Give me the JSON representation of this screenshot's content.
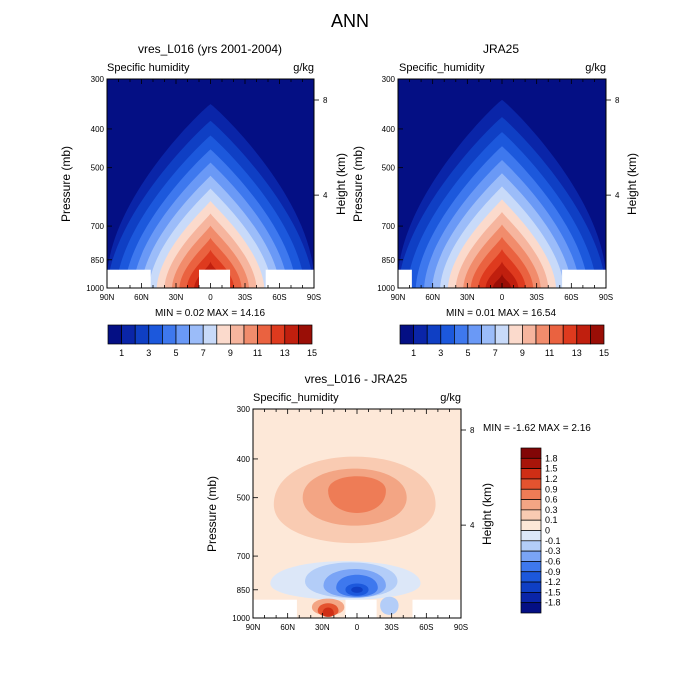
{
  "title": "ANN",
  "panels": [
    {
      "title": "vres_L016 (yrs 2001-2004)",
      "left_label": "Specific humidity",
      "units": "g/kg",
      "ylabel": "Pressure (mb)",
      "y2label": "Height (km)",
      "stats": "MIN =  0.02  MAX =  14.16"
    },
    {
      "title": "JRA25",
      "left_label": "Specific_humidity",
      "units": "g/kg",
      "ylabel": "Pressure (mb)",
      "y2label": "Height (km)",
      "stats": "MIN =  0.01  MAX =  16.54"
    },
    {
      "title": "vres_L016 - JRA25",
      "left_label": "Specific_humidity",
      "units": "g/kg",
      "ylabel": "Pressure (mb)",
      "y2label": "Height (km)",
      "stats": "MIN = -1.62  MAX =   2.16"
    }
  ],
  "chart_data": [
    {
      "type": "heatmap",
      "title": "vres_L016 (yrs 2001-2004)",
      "variable": "Specific humidity",
      "units": "g/kg",
      "xlabel": "",
      "ylabel": "Pressure (mb)",
      "y2label": "Height (km)",
      "x_range": [
        90,
        -90
      ],
      "x_ticks": [
        90,
        60,
        30,
        0,
        -30,
        -60,
        -90
      ],
      "x_tick_labels": [
        "90N",
        "60N",
        "30N",
        "0",
        "30S",
        "60S",
        "90S"
      ],
      "y_ticks": [
        300,
        400,
        500,
        700,
        850,
        1000
      ],
      "y2_ticks": [
        8,
        4
      ],
      "min": 0.02,
      "max": 14.16,
      "colorbar_labels": [
        "1",
        "3",
        "5",
        "7",
        "9",
        "11",
        "13",
        "15"
      ],
      "topography_gaps": [
        [
          90,
          52
        ],
        [
          10,
          -17
        ],
        [
          -48,
          -90
        ]
      ]
    },
    {
      "type": "heatmap",
      "title": "JRA25",
      "variable": "Specific_humidity",
      "units": "g/kg",
      "xlabel": "",
      "ylabel": "Pressure (mb)",
      "y2label": "Height (km)",
      "x_range": [
        90,
        -90
      ],
      "x_ticks": [
        90,
        60,
        30,
        0,
        -30,
        -60,
        -90
      ],
      "x_tick_labels": [
        "90N",
        "60N",
        "30N",
        "0",
        "30S",
        "60S",
        "90S"
      ],
      "y_ticks": [
        300,
        400,
        500,
        700,
        850,
        1000
      ],
      "y2_ticks": [
        8,
        4
      ],
      "min": 0.01,
      "max": 16.54,
      "colorbar_labels": [
        "1",
        "3",
        "5",
        "7",
        "9",
        "11",
        "13",
        "15"
      ],
      "topography_gaps": [
        [
          90,
          78
        ],
        [
          -52,
          -90
        ]
      ]
    },
    {
      "type": "heatmap",
      "title": "vres_L016 - JRA25",
      "variable": "Specific_humidity",
      "units": "g/kg",
      "xlabel": "",
      "ylabel": "Pressure (mb)",
      "y2label": "Height (km)",
      "x_range": [
        90,
        -90
      ],
      "x_ticks": [
        90,
        60,
        30,
        0,
        -30,
        -60,
        -90
      ],
      "x_tick_labels": [
        "90N",
        "60N",
        "30N",
        "0",
        "30S",
        "60S",
        "90S"
      ],
      "y_ticks": [
        300,
        400,
        500,
        700,
        850,
        1000
      ],
      "y2_ticks": [
        8,
        4
      ],
      "min": -1.62,
      "max": 2.16,
      "colorbar_labels": [
        "1.8",
        "1.5",
        "1.2",
        "0.9",
        "0.6",
        "0.3",
        "0.1",
        "0",
        "-0.1",
        "-0.3",
        "-0.6",
        "-0.9",
        "-1.2",
        "-1.5",
        "-1.8"
      ],
      "topography_gaps": [
        [
          90,
          52
        ],
        [
          10,
          -17
        ],
        [
          -48,
          -90
        ]
      ]
    }
  ],
  "y_tick_labels": [
    "300",
    "400",
    "500",
    "700",
    "850",
    "1000"
  ],
  "y2_tick_labels": [
    "8",
    "4"
  ],
  "colors": {
    "abs_levels": [
      "#040F84",
      "#0A25A8",
      "#0F3FC4",
      "#1C58DC",
      "#3E78EE",
      "#6A99F6",
      "#9BBCF9",
      "#C8DAF9",
      "#FBDACC",
      "#F6B59E",
      "#F18C6C",
      "#EA6240",
      "#DE3A1E",
      "#C01F0E",
      "#9A0E06"
    ],
    "diff_levels": [
      "#040F84",
      "#0A25A8",
      "#0F3FC4",
      "#1C58DC",
      "#3E78EE",
      "#7AA4F6",
      "#B3CDF8",
      "#DCE7F8",
      "#FDE8D8",
      "#F9CBB2",
      "#F3A584",
      "#EE7C56",
      "#E4532F",
      "#CF2E15",
      "#A8150A",
      "#820606"
    ]
  }
}
